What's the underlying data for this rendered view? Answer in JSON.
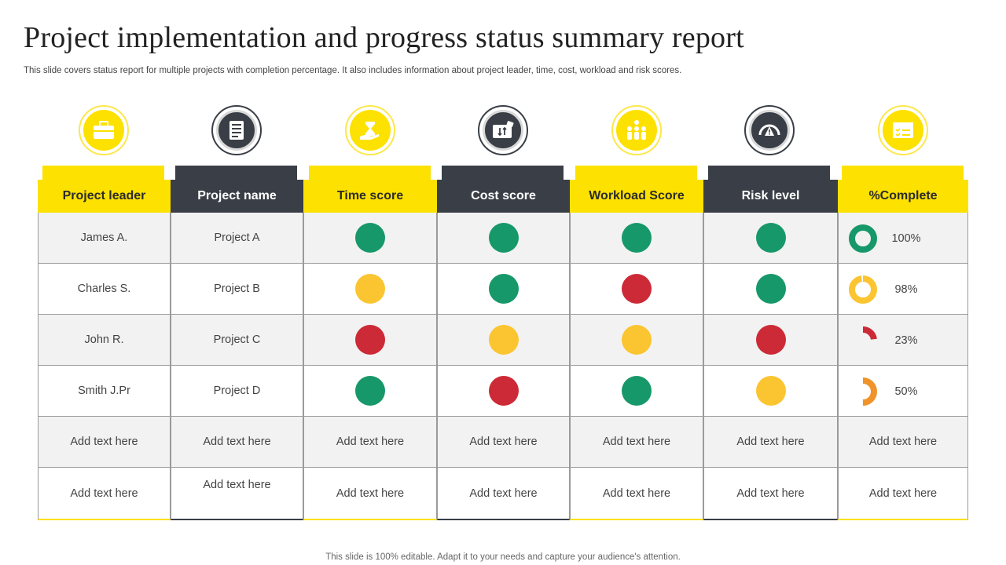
{
  "page": {
    "title": "Project implementation and progress status summary report",
    "subtitle": "This slide covers status report for multiple projects with completion percentage. It also includes information about project leader, time, cost, workload and risk scores.",
    "footer": "This slide is 100% editable. Adapt it to your needs and capture your audience's attention."
  },
  "colors": {
    "green": "#17986a",
    "yellow": "#fbc531",
    "red": "#cc2a36",
    "orange": "#f0932b",
    "brand_yellow": "#fde100",
    "brand_dark": "#3a3f47"
  },
  "table": {
    "columns": [
      {
        "label": "Project leader",
        "icon": "briefcase-icon",
        "theme": "yellow"
      },
      {
        "label": "Project name",
        "icon": "document-icon",
        "theme": "dark"
      },
      {
        "label": "Time score",
        "icon": "hourglass-hand-icon",
        "theme": "yellow"
      },
      {
        "label": "Cost score",
        "icon": "wallet-icon",
        "theme": "dark"
      },
      {
        "label": "Workload Score",
        "icon": "team-icon",
        "theme": "yellow"
      },
      {
        "label": "Risk level",
        "icon": "gauge-warning-icon",
        "theme": "dark"
      },
      {
        "label": "%Complete",
        "icon": "checklist-icon",
        "theme": "yellow"
      }
    ],
    "rows": [
      {
        "leader": "James A.",
        "project": "Project A",
        "time": "green",
        "cost": "green",
        "workload": "green",
        "risk": "green",
        "complete": "100%",
        "complete_value": 100,
        "complete_color": "green"
      },
      {
        "leader": "Charles S.",
        "project": "Project B",
        "time": "yellow",
        "cost": "green",
        "workload": "red",
        "risk": "green",
        "complete": "98%",
        "complete_value": 98,
        "complete_color": "yellow"
      },
      {
        "leader": "John R.",
        "project": "Project C",
        "time": "red",
        "cost": "yellow",
        "workload": "yellow",
        "risk": "red",
        "complete": "23%",
        "complete_value": 23,
        "complete_color": "red"
      },
      {
        "leader": "Smith J.Pr",
        "project": "Project D",
        "time": "green",
        "cost": "red",
        "workload": "green",
        "risk": "yellow",
        "complete": "50%",
        "complete_value": 50,
        "complete_color": "orange"
      }
    ],
    "placeholder_rows": [
      [
        "Add text here",
        "Add text here",
        "Add text here",
        "Add text here",
        "Add text here",
        "Add text here",
        "Add text here"
      ],
      [
        "Add text here",
        "Add text here",
        "Add text here",
        "Add text here",
        "Add text here",
        "Add text here",
        "Add text here"
      ]
    ]
  }
}
